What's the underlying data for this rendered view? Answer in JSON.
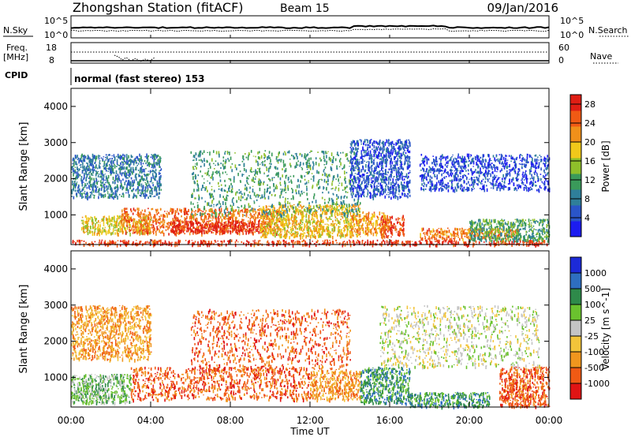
{
  "header": {
    "station": "Zhongshan Station (fitACF)",
    "beam": "Beam 15",
    "date": "09/Jan/2016"
  },
  "strip_labels": {
    "nsky": "N.Sky",
    "nsearch": "N.Search",
    "freq_line1": "Freq.",
    "freq_line2": "[MHz]",
    "nave": "Nave",
    "cpid": "CPID",
    "cpid_value": "normal (fast stereo) 153"
  },
  "strip_ticks": {
    "noise_left": [
      "10^5",
      "10^0"
    ],
    "noise_right": [
      "10^5",
      "10^0"
    ],
    "freq_left": [
      "18",
      "8"
    ],
    "nave_right": [
      "60",
      "0"
    ]
  },
  "chart_data": [
    {
      "type": "heatmap",
      "title": "",
      "xlabel": "Time UT",
      "ylabel": "Slant Range [km]",
      "xticks": [
        "00:00",
        "04:00",
        "08:00",
        "12:00",
        "16:00",
        "20:00",
        "00:00"
      ],
      "yticks": [
        "1000",
        "2000",
        "3000",
        "4000"
      ],
      "xlim_hours": [
        0,
        24
      ],
      "ylim_km": [
        180,
        4500
      ],
      "colorbar": {
        "label": "Power [dB]",
        "ticks": [
          "4",
          "8",
          "12",
          "16",
          "20",
          "24",
          "28"
        ],
        "range": [
          0,
          30
        ],
        "colors": [
          "#1c1cf0",
          "#2a55c8",
          "#2f7f9a",
          "#3a9a5a",
          "#8fbf2a",
          "#f0c81a",
          "#f0901a",
          "#f05a14",
          "#e01e14"
        ]
      },
      "regions": [
        {
          "t": [
            0.0,
            24.0
          ],
          "r": [
            190,
            320
          ],
          "v": 27
        },
        {
          "t": [
            0.5,
            4.0
          ],
          "r": [
            500,
            1000
          ],
          "v": 18
        },
        {
          "t": [
            2.5,
            10.5
          ],
          "r": [
            500,
            1200
          ],
          "v": 24
        },
        {
          "t": [
            5.0,
            9.5
          ],
          "r": [
            550,
            850
          ],
          "v": 29
        },
        {
          "t": [
            9.5,
            14.5
          ],
          "r": [
            400,
            1300
          ],
          "v": 19
        },
        {
          "t": [
            6.0,
            14.5
          ],
          "r": [
            1000,
            2800
          ],
          "v": 11
        },
        {
          "t": [
            0.0,
            4.5
          ],
          "r": [
            1500,
            2700
          ],
          "v": 8
        },
        {
          "t": [
            14.0,
            15.8
          ],
          "r": [
            500,
            1100
          ],
          "v": 21
        },
        {
          "t": [
            15.5,
            16.7
          ],
          "r": [
            400,
            1000
          ],
          "v": 26
        },
        {
          "t": [
            14.0,
            17.0
          ],
          "r": [
            1500,
            3100
          ],
          "v": 5
        },
        {
          "t": [
            17.5,
            24.0
          ],
          "r": [
            1700,
            2700
          ],
          "v": 4
        },
        {
          "t": [
            17.5,
            22.5
          ],
          "r": [
            350,
            650
          ],
          "v": 23
        },
        {
          "t": [
            20.0,
            24.0
          ],
          "r": [
            300,
            900
          ],
          "v": 12
        }
      ]
    },
    {
      "type": "heatmap",
      "title": "",
      "xlabel": "Time UT",
      "ylabel": "Slant Range [km]",
      "xticks": [
        "00:00",
        "04:00",
        "08:00",
        "12:00",
        "16:00",
        "20:00",
        "00:00"
      ],
      "yticks": [
        "1000",
        "2000",
        "3000",
        "4000"
      ],
      "xlim_hours": [
        0,
        24
      ],
      "ylim_km": [
        180,
        4500
      ],
      "colorbar": {
        "label": "Velocity [m s^-1]",
        "ticks": [
          "1000",
          "500",
          "100",
          "25",
          "-25",
          "-100",
          "-500",
          "-1000"
        ],
        "colors": [
          "#1c2ad8",
          "#2e6ec0",
          "#2e8a4a",
          "#6ac22e",
          "#c4c4c4",
          "#f2c43a",
          "#f0961e",
          "#f05a14",
          "#e01414"
        ]
      },
      "regions": [
        {
          "t": [
            0.0,
            3.0
          ],
          "r": [
            300,
            1100
          ],
          "v": 3
        },
        {
          "t": [
            3.0,
            12.0
          ],
          "r": [
            400,
            1300
          ],
          "v": 7
        },
        {
          "t": [
            6.0,
            14.0
          ],
          "r": [
            1200,
            2900
          ],
          "v": 7
        },
        {
          "t": [
            0.0,
            4.0
          ],
          "r": [
            1500,
            3000
          ],
          "v": 6
        },
        {
          "t": [
            12.0,
            14.5
          ],
          "r": [
            400,
            1200
          ],
          "v": 6
        },
        {
          "t": [
            14.5,
            17.0
          ],
          "r": [
            300,
            1300
          ],
          "v": 2
        },
        {
          "t": [
            15.5,
            23.5
          ],
          "r": [
            1300,
            3000
          ],
          "v": 4
        },
        {
          "t": [
            17.0,
            21.0
          ],
          "r": [
            200,
            600
          ],
          "v": 2
        },
        {
          "t": [
            21.5,
            24.0
          ],
          "r": [
            200,
            1300
          ],
          "v": 7
        }
      ]
    }
  ]
}
